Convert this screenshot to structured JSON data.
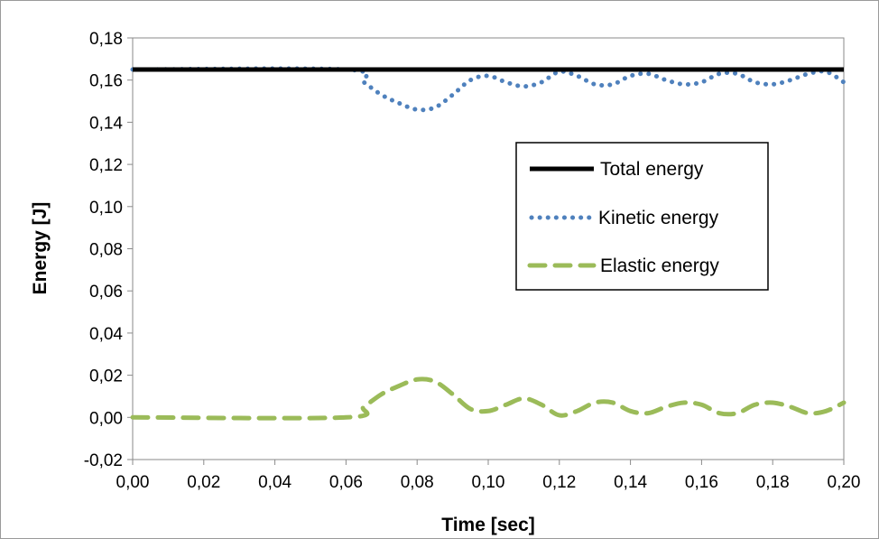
{
  "chart_data": {
    "type": "line",
    "title": "",
    "xlabel": "Time [sec]",
    "ylabel": "Energy [J]",
    "xlim": [
      0.0,
      0.2
    ],
    "ylim": [
      -0.02,
      0.18
    ],
    "x_ticks": [
      "0,00",
      "0,02",
      "0,04",
      "0,06",
      "0,08",
      "0,10",
      "0,12",
      "0,14",
      "0,16",
      "0,18",
      "0,20"
    ],
    "y_ticks": [
      "-0,02",
      "0,00",
      "0,02",
      "0,04",
      "0,06",
      "0,08",
      "0,10",
      "0,12",
      "0,14",
      "0,16",
      "0,18"
    ],
    "grid": false,
    "legend_position": "right",
    "series": [
      {
        "name": "Total energy",
        "style": "solid",
        "color": "#000000",
        "points": [
          [
            0.0,
            0.165
          ],
          [
            0.2,
            0.165
          ]
        ]
      },
      {
        "name": "Kinetic energy",
        "style": "dotted",
        "color": "#4f81bd",
        "points": [
          [
            0.0,
            0.165
          ],
          [
            0.06,
            0.165
          ],
          [
            0.065,
            0.159
          ],
          [
            0.07,
            0.153
          ],
          [
            0.075,
            0.149
          ],
          [
            0.08,
            0.146
          ],
          [
            0.085,
            0.147
          ],
          [
            0.09,
            0.153
          ],
          [
            0.095,
            0.16
          ],
          [
            0.1,
            0.162
          ],
          [
            0.105,
            0.159
          ],
          [
            0.11,
            0.157
          ],
          [
            0.115,
            0.159
          ],
          [
            0.12,
            0.164
          ],
          [
            0.125,
            0.162
          ],
          [
            0.13,
            0.158
          ],
          [
            0.135,
            0.158
          ],
          [
            0.14,
            0.162
          ],
          [
            0.145,
            0.163
          ],
          [
            0.15,
            0.16
          ],
          [
            0.155,
            0.158
          ],
          [
            0.16,
            0.159
          ],
          [
            0.165,
            0.163
          ],
          [
            0.17,
            0.163
          ],
          [
            0.175,
            0.159
          ],
          [
            0.18,
            0.158
          ],
          [
            0.185,
            0.16
          ],
          [
            0.19,
            0.163
          ],
          [
            0.195,
            0.164
          ],
          [
            0.2,
            0.159
          ]
        ]
      },
      {
        "name": "Elastic energy",
        "style": "dashed",
        "color": "#9bbb59",
        "points": [
          [
            0.0,
            0.0
          ],
          [
            0.06,
            0.0
          ],
          [
            0.065,
            0.005
          ],
          [
            0.07,
            0.011
          ],
          [
            0.075,
            0.015
          ],
          [
            0.08,
            0.018
          ],
          [
            0.085,
            0.017
          ],
          [
            0.09,
            0.011
          ],
          [
            0.095,
            0.004
          ],
          [
            0.1,
            0.003
          ],
          [
            0.105,
            0.006
          ],
          [
            0.11,
            0.009
          ],
          [
            0.115,
            0.006
          ],
          [
            0.12,
            0.001
          ],
          [
            0.125,
            0.003
          ],
          [
            0.13,
            0.007
          ],
          [
            0.135,
            0.007
          ],
          [
            0.14,
            0.003
          ],
          [
            0.145,
            0.002
          ],
          [
            0.15,
            0.005
          ],
          [
            0.155,
            0.007
          ],
          [
            0.16,
            0.006
          ],
          [
            0.165,
            0.002
          ],
          [
            0.17,
            0.002
          ],
          [
            0.175,
            0.006
          ],
          [
            0.18,
            0.007
          ],
          [
            0.185,
            0.005
          ],
          [
            0.19,
            0.002
          ],
          [
            0.195,
            0.003
          ],
          [
            0.2,
            0.007
          ]
        ]
      }
    ]
  }
}
